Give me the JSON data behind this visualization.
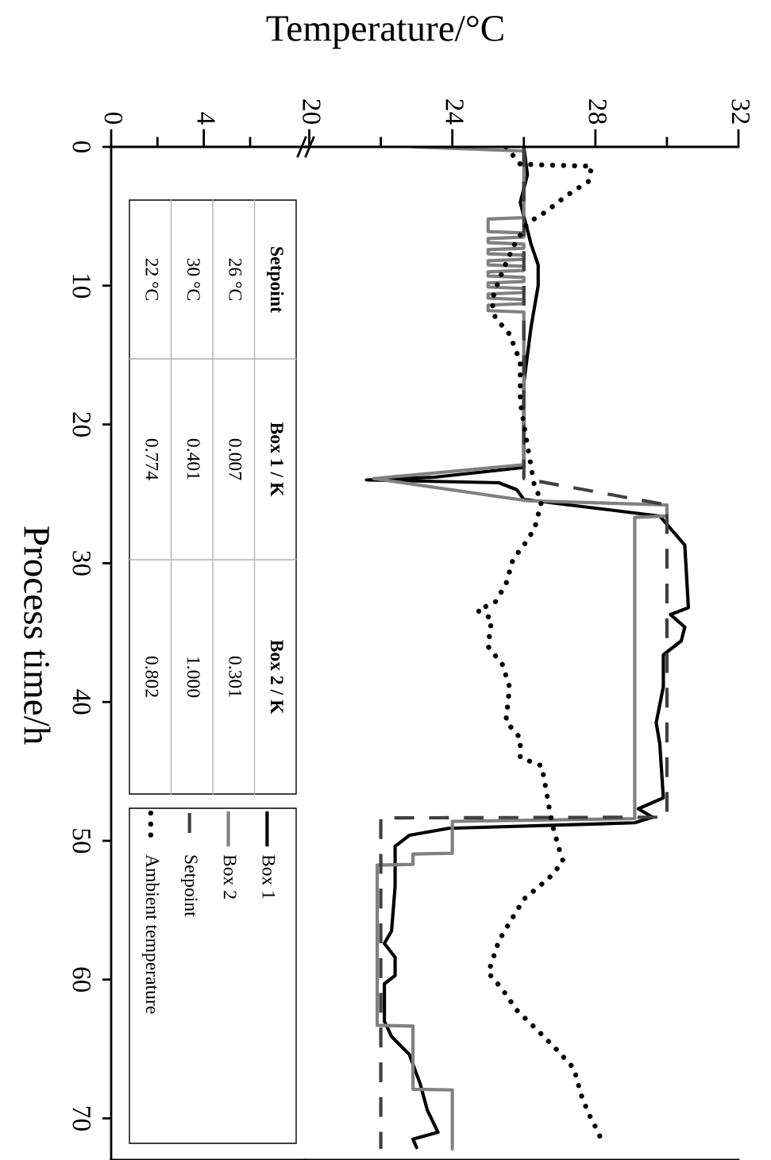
{
  "chart_data": [
    {
      "type": "line",
      "ylabel": "Process time/h",
      "ylim": [
        73,
        0
      ],
      "yticks": [
        0,
        10,
        20,
        30,
        40,
        50,
        60,
        70
      ],
      "xlim": [
        0,
        8.4
      ],
      "xticks": [
        0,
        {
          "value": 2,
          "label": null
        },
        4,
        {
          "value": 6,
          "label": null
        }
      ],
      "annotations": [
        "Setpoint",
        "Box 1 / K",
        "Box 2 / K",
        "26 °C",
        "0.007",
        "0.301",
        "30 °C",
        "0.401",
        "1.000",
        "22 °C",
        "0.774",
        "0.802"
      ]
    },
    {
      "type": "line",
      "xlabel": "Temperature/°C",
      "ylim": [
        73,
        0
      ],
      "xlim": [
        19.9,
        32
      ],
      "xticks": [
        20,
        {
          "value": 22,
          "label": null
        },
        24,
        {
          "value": 26,
          "label": null
        },
        28,
        {
          "value": 30,
          "label": null
        },
        32
      ],
      "tick_labels": "x",
      "legend": "bottom left",
      "series": [
        {
          "name": "Box 1",
          "color": "#000000",
          "line_style": "solid",
          "values": [
            0,
            2,
            4,
            6,
            7,
            8.5,
            10,
            11.5,
            13,
            15,
            17,
            20,
            23.1,
            23.8,
            24.0,
            24.2,
            24.7,
            25.4,
            26.6,
            27.5,
            28.7,
            33.2,
            33.7,
            34.6,
            35.6,
            36.6,
            38.9,
            41.5,
            43,
            46.9,
            47.7,
            48.3,
            48.7,
            49.1,
            49.6,
            50.4,
            51.7,
            53.3,
            56.5,
            57.4,
            58.4,
            59.7,
            60.3,
            63,
            64.1,
            65.4,
            67.5,
            69.4,
            71,
            71.5,
            72.1
          ],
          "x": [
            26.0,
            26.1,
            25.9,
            26.1,
            26.2,
            26.4,
            26.4,
            26.3,
            26.2,
            26.1,
            26.0,
            26.0,
            26.0,
            23.5,
            21.6,
            25.3,
            25.8,
            26.0,
            29.8,
            30.1,
            30.5,
            30.6,
            30.1,
            30.5,
            30.4,
            29.9,
            29.9,
            29.7,
            29.8,
            29.9,
            29.2,
            29.6,
            29.1,
            23.9,
            22.8,
            22.4,
            22.4,
            22.4,
            22.3,
            22.1,
            22.4,
            22.4,
            22.1,
            22.1,
            22.3,
            22.8,
            23.1,
            23.3,
            23.6,
            22.9,
            23.0
          ]
        },
        {
          "name": "Box 2",
          "color": "#808080",
          "line_style": "solid",
          "values": [
            0,
            0.3,
            5.1,
            5.2,
            6.1,
            6.2,
            6.5,
            6.6,
            6.9,
            7.0,
            7.3,
            7.4,
            7.7,
            7.8,
            8.1,
            8.2,
            8.5,
            8.6,
            8.9,
            9.0,
            9.3,
            9.4,
            9.7,
            9.8,
            10.1,
            10.2,
            10.5,
            10.6,
            10.9,
            11.0,
            11.3,
            11.4,
            11.8,
            11.9,
            22.9,
            23.9,
            25.5,
            25.8,
            26.6,
            26.7,
            48.4,
            48.6,
            50.9,
            50.95,
            51.7,
            51.75,
            63.3,
            63.35,
            67.9,
            67.95,
            72.2
          ],
          "x": [
            22.9,
            26.0,
            26.0,
            25.0,
            25.0,
            26.0,
            26.0,
            25.0,
            25.0,
            26.0,
            26.0,
            25.0,
            25.0,
            26.0,
            26.0,
            25.0,
            25.0,
            26.0,
            26.0,
            25.0,
            25.0,
            26.0,
            26.0,
            25.0,
            25.0,
            26.0,
            26.0,
            25.0,
            25.0,
            26.0,
            26.0,
            25.0,
            25.0,
            26.0,
            26.0,
            21.8,
            26.1,
            30.0,
            30.0,
            29.1,
            29.1,
            24.0,
            24.0,
            22.9,
            22.9,
            21.9,
            21.9,
            22.9,
            22.9,
            24.0,
            24.0
          ]
        },
        {
          "name": "Setpoint",
          "color": "#404040",
          "line_style": "dashed",
          "values": [
            0,
            23.9,
            25.8,
            48.3,
            48.35,
            72.2
          ],
          "x": [
            26.0,
            26.0,
            30.0,
            30.0,
            22.0,
            22.0
          ]
        },
        {
          "name": "Ambient temperature",
          "color": "#000000",
          "line_style": "dotted",
          "values": [
            0,
            1.25,
            1.4,
            2.5,
            3.5,
            4.7,
            5.5,
            7.2,
            9.6,
            11.1,
            12.3,
            13.5,
            15.5,
            18.4,
            21.5,
            24.5,
            25.5,
            27.5,
            28.7,
            29.7,
            31.5,
            32.8,
            33.4,
            34,
            36,
            37.3,
            38.9,
            41.4,
            42.6,
            44,
            44.6,
            46,
            47.5,
            48.9,
            50.7,
            51.5,
            52.7,
            54.2,
            55.9,
            57.2,
            58.8,
            59.5,
            60.7,
            62.2,
            63.7,
            65,
            66.4,
            68.3,
            69.6,
            71.1,
            71.9
          ],
          "x": [
            25.5,
            25.9,
            27.9,
            27.8,
            27.2,
            26.6,
            26.1,
            25.7,
            25.3,
            25.1,
            25.2,
            25.6,
            25.9,
            25.9,
            26.1,
            26.3,
            26.5,
            26.3,
            26.0,
            25.7,
            25.5,
            25.2,
            24.7,
            25.1,
            25.0,
            25.4,
            25.6,
            25.5,
            25.9,
            25.9,
            26.5,
            26.6,
            26.7,
            26.8,
            27.0,
            27.1,
            26.7,
            26.0,
            25.6,
            25.3,
            25.1,
            25.0,
            25.4,
            25.8,
            26.4,
            26.9,
            27.4,
            27.6,
            27.8,
            28.1,
            28.2
          ]
        }
      ]
    }
  ]
}
